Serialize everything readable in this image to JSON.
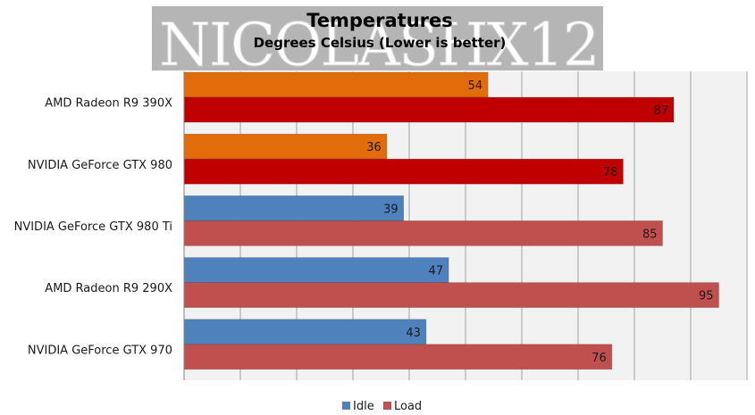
{
  "chart_data": {
    "type": "bar",
    "orientation": "horizontal",
    "title": "Temperatures",
    "subtitle": "Degrees Celsius (Lower is better)",
    "watermark": "NICOLASHX12",
    "categories": [
      "AMD Radeon R9 390X",
      "NVIDIA GeForce GTX 980",
      "NVIDIA GeForce GTX 980 Ti",
      "AMD Radeon R9 290X",
      "NVIDIA GeForce GTX 970"
    ],
    "series": [
      {
        "name": "Idle",
        "values": [
          54,
          36,
          39,
          47,
          43
        ]
      },
      {
        "name": "Load",
        "values": [
          87,
          78,
          85,
          95,
          76
        ]
      }
    ],
    "xlim": [
      0,
      100
    ],
    "grid": true,
    "legend": "bottom",
    "colors": {
      "idle": "#4f81bd",
      "load": "#c0504d",
      "idle_highlight": "#e36c0a",
      "load_highlight": "#c00000",
      "plot_background": "#f2f2f2",
      "gridline": "#8c8c8c"
    },
    "highlighted_categories": [
      "AMD Radeon R9 390X",
      "NVIDIA GeForce GTX 980"
    ]
  }
}
